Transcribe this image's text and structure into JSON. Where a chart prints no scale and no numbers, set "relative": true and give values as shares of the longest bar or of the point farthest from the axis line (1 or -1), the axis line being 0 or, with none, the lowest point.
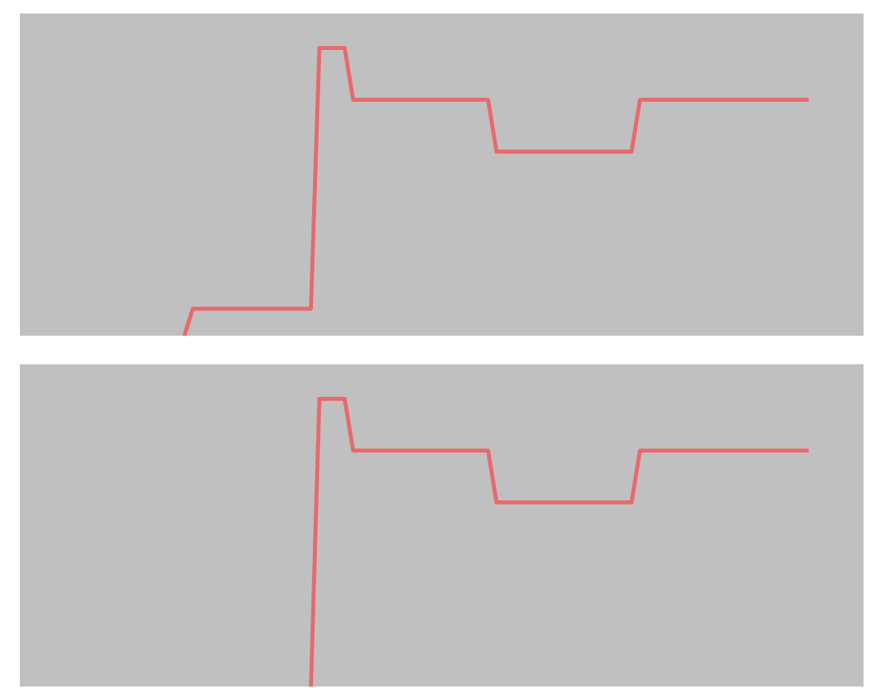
{
  "chart_data": [
    {
      "type": "line",
      "relative": true,
      "tick_labels": false,
      "categories": [
        null,
        null,
        null,
        null,
        null,
        null,
        null,
        null,
        null,
        null,
        null,
        null,
        null,
        null,
        null,
        null,
        null,
        null,
        null,
        null,
        null,
        null,
        null,
        null,
        null,
        null,
        null,
        null,
        null,
        null,
        null,
        null,
        null,
        null,
        null,
        null,
        null,
        null,
        null,
        null,
        null,
        null,
        null,
        null,
        null,
        null,
        null,
        null,
        null,
        null,
        null,
        null,
        null,
        null,
        null,
        null,
        null,
        null,
        null,
        null,
        null,
        null,
        null,
        null,
        null,
        null,
        null,
        null,
        null,
        null,
        null,
        null,
        null,
        null,
        null,
        null,
        null,
        null,
        null,
        null,
        null,
        null,
        null,
        null,
        null,
        null,
        null,
        null,
        null,
        null,
        null,
        null,
        null,
        null,
        null,
        null,
        null,
        null,
        null,
        null
      ],
      "series": [
        {
          "color": "#e8696b",
          "values": [
            null,
            null,
            null,
            null,
            null,
            null,
            null,
            null,
            null,
            null,
            null,
            null,
            null,
            null,
            null,
            null,
            null,
            null,
            null,
            0,
            0.094,
            0.094,
            0.094,
            0.094,
            0.094,
            0.094,
            0.094,
            0.094,
            0.094,
            0.094,
            0.094,
            0.094,
            0.094,
            0.094,
            0.094,
            1,
            1,
            1,
            1,
            0.82,
            0.82,
            0.82,
            0.82,
            0.82,
            0.82,
            0.82,
            0.82,
            0.82,
            0.82,
            0.82,
            0.82,
            0.82,
            0.82,
            0.82,
            0.82,
            0.82,
            0.64,
            0.64,
            0.64,
            0.64,
            0.64,
            0.64,
            0.64,
            0.64,
            0.64,
            0.64,
            0.64,
            0.64,
            0.64,
            0.64,
            0.64,
            0.64,
            0.64,
            0.82,
            0.82,
            0.82,
            0.82,
            0.82,
            0.82,
            0.82,
            0.82,
            0.82,
            0.82,
            0.82,
            0.82,
            0.82,
            0.82,
            0.82,
            0.82,
            0.82,
            0.82,
            0.82,
            0.82,
            0.82,
            null,
            null,
            null,
            null,
            null,
            null
          ]
        }
      ]
    },
    {
      "type": "line",
      "relative": true,
      "tick_labels": false,
      "categories": [
        null,
        null,
        null,
        null,
        null,
        null,
        null,
        null,
        null,
        null,
        null,
        null,
        null,
        null,
        null,
        null,
        null,
        null,
        null,
        null,
        null,
        null,
        null,
        null,
        null,
        null,
        null,
        null,
        null,
        null,
        null,
        null,
        null,
        null,
        null,
        null,
        null,
        null,
        null,
        null,
        null,
        null,
        null,
        null,
        null,
        null,
        null,
        null,
        null,
        null,
        null,
        null,
        null,
        null,
        null,
        null,
        null,
        null,
        null,
        null,
        null,
        null,
        null,
        null,
        null,
        null,
        null,
        null,
        null,
        null,
        null,
        null,
        null,
        null,
        null,
        null,
        null,
        null,
        null,
        null,
        null,
        null,
        null,
        null,
        null,
        null,
        null,
        null,
        null,
        null,
        null,
        null,
        null,
        null,
        null,
        null,
        null,
        null,
        null,
        null
      ],
      "series": [
        {
          "color": "#e8696b",
          "values": [
            null,
            null,
            null,
            null,
            null,
            null,
            null,
            null,
            null,
            null,
            null,
            null,
            null,
            null,
            null,
            null,
            null,
            null,
            null,
            null,
            null,
            null,
            null,
            null,
            null,
            null,
            null,
            null,
            null,
            null,
            null,
            null,
            null,
            null,
            0,
            1,
            1,
            1,
            1,
            0.82,
            0.82,
            0.82,
            0.82,
            0.82,
            0.82,
            0.82,
            0.82,
            0.82,
            0.82,
            0.82,
            0.82,
            0.82,
            0.82,
            0.82,
            0.82,
            0.82,
            0.64,
            0.64,
            0.64,
            0.64,
            0.64,
            0.64,
            0.64,
            0.64,
            0.64,
            0.64,
            0.64,
            0.64,
            0.64,
            0.64,
            0.64,
            0.64,
            0.64,
            0.82,
            0.82,
            0.82,
            0.82,
            0.82,
            0.82,
            0.82,
            0.82,
            0.82,
            0.82,
            0.82,
            0.82,
            0.82,
            0.82,
            0.82,
            0.82,
            0.82,
            0.82,
            0.82,
            0.82,
            0.82,
            null,
            null,
            null,
            null,
            null,
            null
          ]
        }
      ]
    }
  ]
}
